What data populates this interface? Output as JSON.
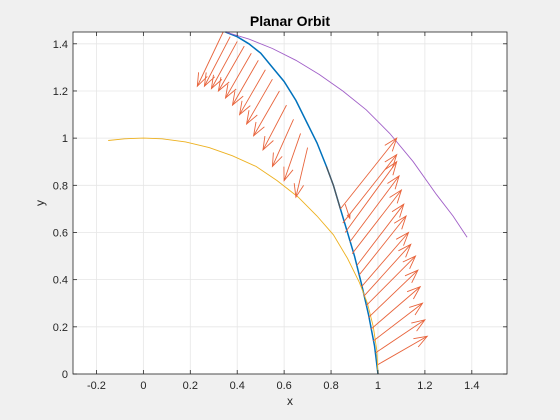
{
  "chart_data": {
    "type": "line",
    "title": "Planar Orbit",
    "xlabel": "x",
    "ylabel": "y",
    "xlim": [
      -0.3,
      1.55
    ],
    "ylim": [
      0,
      1.45
    ],
    "grid": true,
    "x_ticks": [
      "-0.2",
      "0",
      "0.2",
      "0.4",
      "0.6",
      "0.8",
      "1",
      "1.2",
      "1.4"
    ],
    "x_tick_values": [
      -0.2,
      0,
      0.2,
      0.4,
      0.6,
      0.8,
      1,
      1.2,
      1.4
    ],
    "y_ticks": [
      "0",
      "0.2",
      "0.4",
      "0.6",
      "0.8",
      "1",
      "1.2",
      "1.4"
    ],
    "y_tick_values": [
      0,
      0.2,
      0.4,
      0.6,
      0.8,
      1,
      1.2,
      1.4
    ],
    "colors": {
      "orbit": "#0072bd",
      "circle": "#edb120",
      "outer": "#a160c8",
      "arrows": "#e8643c",
      "dark_segment": "#555555"
    },
    "series": [
      {
        "key": "orbit",
        "x": [
          1.0,
          0.985,
          0.96,
          0.93,
          0.9,
          0.87,
          0.84,
          0.81,
          0.78,
          0.74,
          0.7,
          0.65,
          0.6,
          0.55,
          0.5,
          0.45,
          0.4,
          0.35
        ],
        "y": [
          0.0,
          0.12,
          0.25,
          0.38,
          0.5,
          0.6,
          0.7,
          0.8,
          0.88,
          0.98,
          1.06,
          1.16,
          1.24,
          1.3,
          1.36,
          1.4,
          1.43,
          1.45
        ]
      },
      {
        "key": "circle",
        "x": [
          1.0,
          0.995,
          0.98,
          0.955,
          0.92,
          0.87,
          0.81,
          0.74,
          0.66,
          0.57,
          0.48,
          0.38,
          0.28,
          0.18,
          0.08,
          0.0,
          -0.08,
          -0.15
        ],
        "y": [
          0.0,
          0.1,
          0.2,
          0.3,
          0.39,
          0.49,
          0.59,
          0.67,
          0.75,
          0.82,
          0.88,
          0.925,
          0.96,
          0.984,
          0.997,
          1.0,
          0.997,
          0.99
        ]
      },
      {
        "key": "outer",
        "x": [
          0.35,
          0.45,
          0.55,
          0.65,
          0.75,
          0.85,
          0.95,
          1.05,
          1.15,
          1.25,
          1.32,
          1.38
        ],
        "y": [
          1.45,
          1.42,
          1.38,
          1.33,
          1.27,
          1.2,
          1.12,
          1.02,
          0.9,
          0.76,
          0.67,
          0.58
        ]
      },
      {
        "key": "dark_segment",
        "x": [
          0.84,
          0.81,
          0.78
        ],
        "y": [
          0.7,
          0.8,
          0.88
        ]
      }
    ],
    "arrows_group_1": {
      "x": [
        0.34,
        0.37,
        0.4,
        0.43,
        0.46,
        0.49,
        0.52,
        0.55,
        0.58,
        0.61,
        0.64,
        0.67,
        0.7
      ],
      "y": [
        1.45,
        1.43,
        1.41,
        1.39,
        1.36,
        1.33,
        1.29,
        1.25,
        1.2,
        1.14,
        1.08,
        1.02,
        0.96
      ],
      "dx": [
        -0.11,
        -0.11,
        -0.11,
        -0.11,
        -0.11,
        -0.11,
        -0.11,
        -0.11,
        -0.11,
        -0.1,
        -0.09,
        -0.07,
        -0.05
      ],
      "dy": [
        -0.23,
        -0.21,
        -0.2,
        -0.19,
        -0.19,
        -0.19,
        -0.19,
        -0.19,
        -0.19,
        -0.19,
        -0.2,
        -0.2,
        -0.21
      ]
    },
    "arrows_group_2": {
      "x": [
        0.84,
        0.85,
        0.86,
        0.88,
        0.89,
        0.91,
        0.92,
        0.93,
        0.94,
        0.95,
        0.96,
        0.97,
        0.98,
        0.99,
        1.0
      ],
      "y": [
        0.7,
        0.64,
        0.6,
        0.56,
        0.51,
        0.46,
        0.42,
        0.37,
        0.33,
        0.29,
        0.24,
        0.19,
        0.14,
        0.09,
        0.04
      ],
      "dx": [
        0.24,
        0.23,
        0.22,
        0.21,
        0.21,
        0.2,
        0.2,
        0.2,
        0.2,
        0.21,
        0.21,
        0.21,
        0.21,
        0.21,
        0.21
      ],
      "dy": [
        0.3,
        0.29,
        0.3,
        0.28,
        0.27,
        0.26,
        0.25,
        0.23,
        0.22,
        0.21,
        0.2,
        0.18,
        0.16,
        0.14,
        0.12
      ]
    },
    "arrow_near_knee": {
      "x": 0.86,
      "y": 0.72,
      "dx": 0.02,
      "dy": -0.06
    }
  }
}
